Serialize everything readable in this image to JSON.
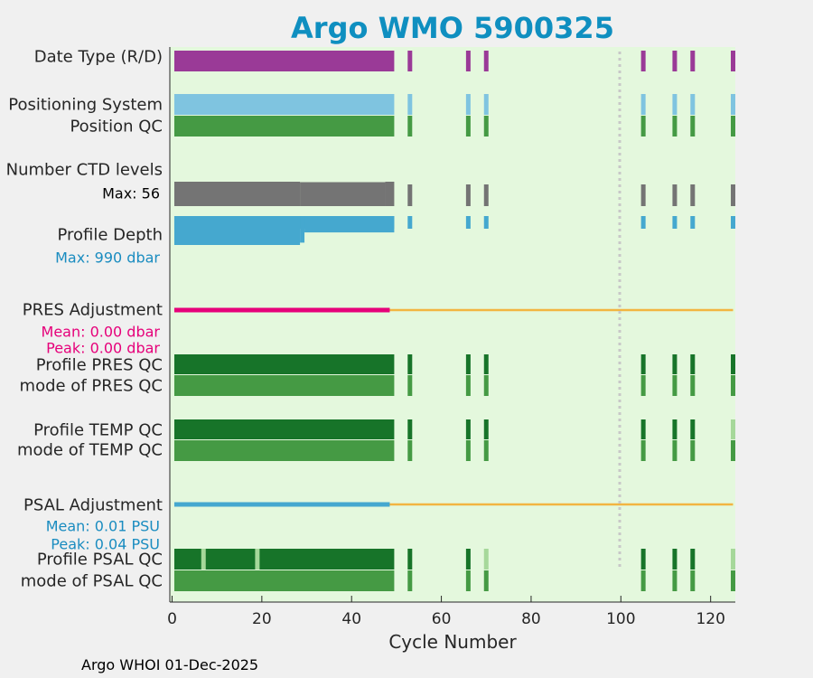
{
  "chart_data": {
    "type": "bar",
    "title": "Argo WMO 5900325",
    "xlabel": "Cycle Number",
    "xlim": [
      -0.5,
      125.5
    ],
    "xticks": [
      0,
      20,
      40,
      60,
      80,
      100,
      120
    ],
    "vline_cycle": 100,
    "footer": "Argo WHOI 01-Dec-2025",
    "cycles_early": [
      1,
      49
    ],
    "cycles_late": [
      53,
      66,
      70,
      105,
      112,
      116,
      125
    ],
    "rows": [
      {
        "label": "Date Type (R/D)",
        "color": "#9a3a97"
      },
      {
        "label": "Positioning System",
        "color": "#7fc4e0"
      },
      {
        "label": "Position QC",
        "color": "#459a44"
      },
      {
        "label": "Number CTD levels",
        "color": "#747474",
        "annotation": "Max: 56",
        "annotation_color": "#000000",
        "max_value": 56
      },
      {
        "label": "Profile Depth",
        "color": "#45a8cf",
        "annotation": "Max:  990 dbar",
        "annotation_color": "#1a8cc0",
        "max_value": 990
      },
      {
        "label": "PRES Adjustment",
        "color": "#e6007a",
        "line_color": "#f2b541",
        "mean": "Mean: 0.00 dbar",
        "peak": "Peak: 0.00 dbar",
        "stat_color": "#e6007a"
      },
      {
        "label": "Profile PRES QC",
        "color": "#177429"
      },
      {
        "label": "mode of PRES QC",
        "color": "#459a44"
      },
      {
        "label": "Profile TEMP QC",
        "color": "#177429",
        "light_at": [
          125
        ]
      },
      {
        "label": "mode of TEMP QC",
        "color": "#459a44"
      },
      {
        "label": "PSAL Adjustment",
        "color": "#45a8cf",
        "line_color": "#f2b541",
        "mean": "Mean: 0.01 PSU",
        "peak": "Peak: 0.04 PSU",
        "stat_color": "#1a8cc0"
      },
      {
        "label": "Profile PSAL QC",
        "color": "#177429",
        "light_at": [
          7,
          19,
          70,
          125
        ]
      },
      {
        "label": "mode of PSAL QC",
        "color": "#459a44"
      }
    ],
    "ctd_levels_profile": [
      {
        "from": 1,
        "to": 28,
        "value": 56
      },
      {
        "from": 29,
        "to": 47,
        "value": 55
      },
      {
        "from": 48,
        "to": 49,
        "value": 56
      }
    ],
    "depth_profile": [
      {
        "from": 1,
        "to": 28,
        "value": 990
      },
      {
        "from": 29,
        "to": 29,
        "value": 910
      },
      {
        "from": 30,
        "to": 49,
        "value": 560
      }
    ]
  }
}
